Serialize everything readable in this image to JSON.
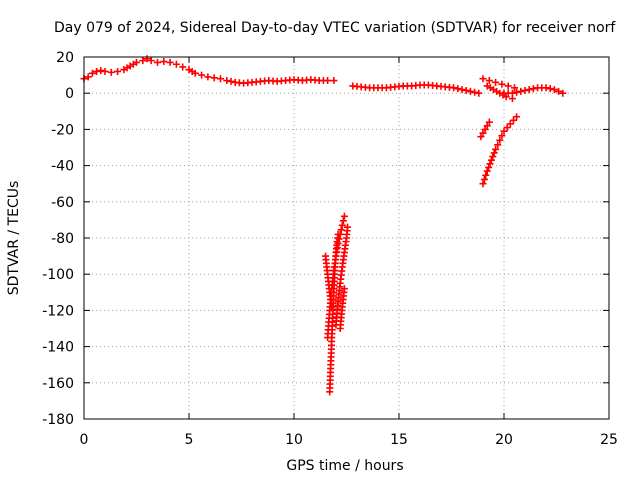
{
  "chart_data": {
    "type": "scatter",
    "title": "Day 079 of 2024, Sidereal Day-to-day VTEC variation (SDTVAR) for receiver norf",
    "xlabel": "GPS time / hours",
    "ylabel": "SDTVAR / TECUs",
    "xlim": [
      0,
      25
    ],
    "ylim": [
      -180,
      20
    ],
    "xticks": [
      0,
      5,
      10,
      15,
      20,
      25
    ],
    "yticks": [
      20,
      0,
      -20,
      -40,
      -60,
      -80,
      -100,
      -120,
      -140,
      -160,
      -180
    ],
    "grid": true,
    "marker": "plus",
    "color": "#ff0000",
    "series": [
      {
        "name": "main-trace",
        "points": [
          [
            0.0,
            8
          ],
          [
            0.2,
            9
          ],
          [
            0.4,
            11
          ],
          [
            0.6,
            12
          ],
          [
            0.8,
            12.5
          ],
          [
            1.0,
            12
          ],
          [
            1.3,
            11.5
          ],
          [
            1.6,
            12
          ],
          [
            1.9,
            13
          ],
          [
            2.2,
            15
          ],
          [
            2.5,
            17
          ],
          [
            2.8,
            18
          ],
          [
            3.0,
            19
          ],
          [
            3.2,
            18
          ],
          [
            3.5,
            17
          ],
          [
            3.8,
            17.5
          ],
          [
            4.1,
            17
          ],
          [
            4.4,
            16
          ],
          [
            4.7,
            14.5
          ],
          [
            5.0,
            13
          ],
          [
            5.3,
            11
          ],
          [
            5.6,
            10
          ],
          [
            5.9,
            9
          ],
          [
            6.2,
            8.5
          ],
          [
            6.5,
            8
          ],
          [
            6.8,
            7
          ],
          [
            7.2,
            6
          ],
          [
            7.6,
            5.5
          ],
          [
            8.0,
            6
          ],
          [
            8.4,
            6.5
          ],
          [
            8.8,
            7
          ],
          [
            9.2,
            6.5
          ],
          [
            9.6,
            7
          ],
          [
            10.0,
            7.5
          ],
          [
            10.4,
            7
          ],
          [
            10.8,
            7.5
          ],
          [
            11.2,
            7
          ],
          [
            11.6,
            7
          ],
          [
            11.9,
            7
          ]
        ]
      },
      {
        "name": "mid-trace",
        "points": [
          [
            12.8,
            4
          ],
          [
            13.2,
            3.5
          ],
          [
            13.6,
            3
          ],
          [
            14.0,
            3
          ],
          [
            14.4,
            3
          ],
          [
            14.8,
            3.5
          ],
          [
            15.2,
            4
          ],
          [
            15.6,
            4
          ],
          [
            16.0,
            4.5
          ],
          [
            16.4,
            4.5
          ],
          [
            16.8,
            4
          ],
          [
            17.2,
            3.5
          ],
          [
            17.6,
            3
          ],
          [
            18.0,
            2
          ],
          [
            18.4,
            1
          ],
          [
            18.8,
            0
          ]
        ]
      },
      {
        "name": "late-trace-a",
        "points": [
          [
            19.0,
            8
          ],
          [
            19.3,
            7
          ],
          [
            19.6,
            6
          ],
          [
            19.9,
            5
          ],
          [
            20.2,
            4
          ],
          [
            20.5,
            3
          ]
        ]
      },
      {
        "name": "late-trace-b",
        "points": [
          [
            19.2,
            4
          ],
          [
            19.5,
            2
          ],
          [
            19.8,
            0
          ],
          [
            20.1,
            -2
          ],
          [
            20.4,
            -3
          ]
        ]
      },
      {
        "name": "late-trace-c",
        "points": [
          [
            20.0,
            0
          ],
          [
            20.4,
            0
          ],
          [
            20.8,
            1
          ],
          [
            21.2,
            2
          ],
          [
            21.6,
            3
          ],
          [
            22.0,
            3
          ],
          [
            22.4,
            2
          ],
          [
            22.8,
            0
          ]
        ]
      },
      {
        "name": "dip-near-19",
        "points": [
          [
            19.0,
            -50
          ],
          [
            19.2,
            -43
          ],
          [
            19.4,
            -37
          ],
          [
            19.6,
            -31
          ],
          [
            19.8,
            -26
          ],
          [
            20.0,
            -21
          ],
          [
            20.3,
            -17
          ],
          [
            20.6,
            -13
          ]
        ]
      },
      {
        "name": "dip-near-19-short",
        "points": [
          [
            18.9,
            -24
          ],
          [
            19.1,
            -20
          ],
          [
            19.3,
            -16
          ]
        ]
      },
      {
        "name": "dip-near-12-a",
        "points": [
          [
            11.7,
            -165
          ],
          [
            11.75,
            -150
          ],
          [
            11.8,
            -135
          ],
          [
            11.85,
            -120
          ],
          [
            11.9,
            -108
          ],
          [
            11.95,
            -96
          ],
          [
            12.0,
            -88
          ],
          [
            12.05,
            -82
          ],
          [
            12.1,
            -78
          ]
        ]
      },
      {
        "name": "dip-near-12-b",
        "points": [
          [
            11.6,
            -135
          ],
          [
            11.7,
            -120
          ],
          [
            11.8,
            -108
          ],
          [
            11.9,
            -98
          ],
          [
            12.0,
            -90
          ],
          [
            12.1,
            -83
          ],
          [
            12.2,
            -78
          ],
          [
            12.3,
            -73
          ],
          [
            12.4,
            -68
          ]
        ]
      },
      {
        "name": "dip-near-12-c",
        "points": [
          [
            12.0,
            -128
          ],
          [
            12.1,
            -115
          ],
          [
            12.2,
            -105
          ],
          [
            12.3,
            -96
          ],
          [
            12.4,
            -88
          ],
          [
            12.5,
            -80
          ],
          [
            12.55,
            -74
          ]
        ]
      },
      {
        "name": "dip-near-12-d",
        "points": [
          [
            11.5,
            -90
          ],
          [
            11.6,
            -100
          ],
          [
            11.7,
            -110
          ],
          [
            11.8,
            -118
          ]
        ]
      },
      {
        "name": "dip-near-12-e",
        "points": [
          [
            12.2,
            -130
          ],
          [
            12.3,
            -118
          ],
          [
            12.4,
            -108
          ]
        ]
      }
    ]
  }
}
